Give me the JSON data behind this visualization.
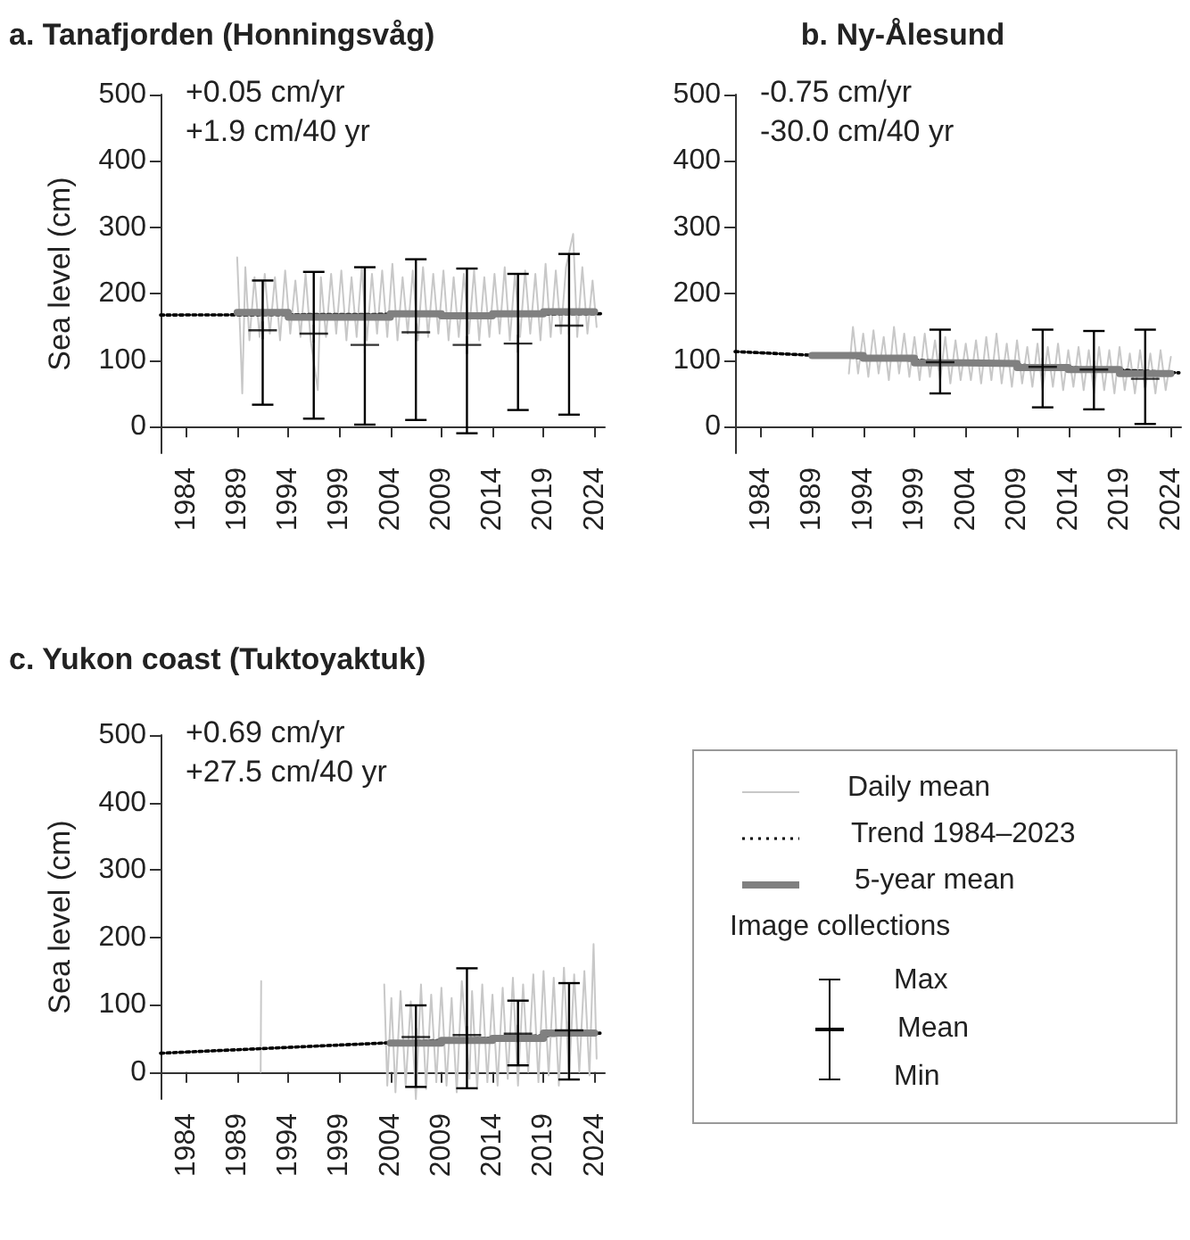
{
  "chart_data": [
    {
      "type": "line",
      "title": "a. Tanafjorden (Honningsvåg)",
      "ylabel": "Sea level (cm)",
      "annotations": [
        "+0.05 cm/yr",
        "+1.9 cm/40 yr"
      ],
      "xlim": [
        1981.5,
        2025
      ],
      "ylim": [
        -40,
        500
      ],
      "xticks": [
        1984,
        1989,
        1994,
        1999,
        2004,
        2009,
        2014,
        2019,
        2024
      ],
      "yticks": [
        0,
        100,
        200,
        300,
        400,
        500
      ],
      "grid": false,
      "marker": "none",
      "series": [
        {
          "type": "line",
          "color": "#c8c8c8",
          "x": [
            1989.0,
            1989.3,
            1989.5,
            1989.8,
            1990.2,
            1990.7,
            1991.2,
            1991.7,
            1992.2,
            1992.7,
            1993.2,
            1993.7,
            1994.2,
            1994.7,
            1995.2,
            1995.7,
            1996.2,
            1996.9,
            1997.2,
            1997.7,
            1998.2,
            1998.7,
            1999.2,
            1999.7,
            2000.2,
            2000.7,
            2001.2,
            2001.7,
            2002.2,
            2002.7,
            2003.2,
            2003.7,
            2004.2,
            2004.7,
            2005.2,
            2005.7,
            2006.2,
            2006.7,
            2007.2,
            2007.7,
            2008.2,
            2008.7,
            2009.2,
            2009.7,
            2010.2,
            2010.7,
            2011.2,
            2011.7,
            2012.2,
            2012.7,
            2013.2,
            2013.7,
            2014.2,
            2014.7,
            2015.2,
            2015.7,
            2016.2,
            2016.7,
            2017.2,
            2017.7,
            2018.2,
            2018.7,
            2019.2,
            2019.7,
            2020.2,
            2020.7,
            2021.2,
            2021.9,
            2022.3,
            2022.8,
            2023.3,
            2023.8,
            2024.2
          ],
          "values": [
            255,
            140,
            50,
            240,
            130,
            225,
            135,
            230,
            140,
            225,
            130,
            235,
            140,
            220,
            135,
            230,
            130,
            55,
            225,
            135,
            230,
            140,
            235,
            130,
            225,
            135,
            240,
            130,
            230,
            140,
            235,
            135,
            245,
            130,
            225,
            140,
            235,
            130,
            240,
            135,
            230,
            140,
            235,
            130,
            225,
            135,
            230,
            140,
            235,
            130,
            225,
            135,
            230,
            140,
            240,
            130,
            230,
            135,
            235,
            140,
            230,
            130,
            245,
            135,
            235,
            140,
            240,
            290,
            135,
            240,
            140,
            220,
            150
          ]
        },
        {
          "type": "line",
          "line_style": "dotted",
          "color": "#000000",
          "x": [
            1981.5,
            2024.8
          ],
          "values": [
            168,
            170
          ]
        },
        {
          "type": "step",
          "color": "#808080",
          "x": [
            1989,
            1994,
            1999,
            2004,
            2009,
            2014,
            2019,
            2024
          ],
          "values": [
            172,
            165,
            165,
            170,
            167,
            170,
            173,
            173
          ]
        },
        {
          "type": "scatter",
          "marker": "cross",
          "color": "#000000",
          "x": [
            1991.5,
            1996.5,
            2001.5,
            2006.5,
            2011.5,
            2016.5,
            2021.5
          ],
          "values": [
            145,
            140,
            123,
            142,
            123,
            125,
            152
          ],
          "errors": [
            [
              33,
              220
            ],
            [
              12,
              233
            ],
            [
              3,
              240
            ],
            [
              10,
              252
            ],
            [
              -10,
              238
            ],
            [
              25,
              230
            ],
            [
              18,
              260
            ]
          ]
        }
      ]
    },
    {
      "type": "line",
      "title": "b. Ny-Ålesund",
      "annotations": [
        "-0.75 cm/yr",
        "-30.0 cm/40 yr"
      ],
      "xlim": [
        1981.5,
        2025
      ],
      "ylim": [
        -40,
        500
      ],
      "xticks": [
        1984,
        1989,
        1994,
        1999,
        2004,
        2009,
        2014,
        2019,
        2024
      ],
      "yticks": [
        0,
        100,
        200,
        300,
        400,
        500
      ],
      "grid": false,
      "marker": "none",
      "series": [
        {
          "type": "line",
          "color": "#c8c8c8",
          "x": [
            1992.6,
            1993.0,
            1993.5,
            1994.0,
            1994.5,
            1995.0,
            1995.5,
            1996.0,
            1996.5,
            1997.0,
            1997.5,
            1998.0,
            1998.5,
            1999.0,
            1999.5,
            2000.0,
            2000.5,
            2001.0,
            2001.5,
            2002.0,
            2002.5,
            2003.0,
            2003.5,
            2004.0,
            2004.5,
            2005.0,
            2005.5,
            2006.0,
            2006.5,
            2007.0,
            2007.5,
            2008.0,
            2008.5,
            2009.0,
            2009.5,
            2010.0,
            2010.5,
            2011.0,
            2011.5,
            2012.0,
            2012.5,
            2013.0,
            2013.5,
            2014.0,
            2014.5,
            2015.0,
            2015.5,
            2016.0,
            2016.5,
            2017.0,
            2017.5,
            2018.0,
            2018.5,
            2019.0,
            2019.5,
            2020.0,
            2020.5,
            2021.0,
            2021.5,
            2022.0,
            2022.5,
            2023.0,
            2023.5,
            2024.0
          ],
          "values": [
            80,
            150,
            80,
            140,
            75,
            145,
            80,
            135,
            70,
            150,
            80,
            140,
            75,
            135,
            70,
            140,
            75,
            130,
            70,
            135,
            65,
            130,
            70,
            125,
            70,
            130,
            65,
            135,
            70,
            140,
            65,
            125,
            60,
            130,
            65,
            120,
            60,
            125,
            55,
            120,
            60,
            125,
            55,
            115,
            60,
            120,
            55,
            115,
            50,
            120,
            55,
            115,
            50,
            120,
            55,
            110,
            50,
            115,
            55,
            110,
            50,
            115,
            55,
            105
          ]
        },
        {
          "type": "line",
          "line_style": "dotted",
          "color": "#000000",
          "x": [
            1981.5,
            2024.8
          ],
          "values": [
            113,
            81
          ]
        },
        {
          "type": "step",
          "color": "#808080",
          "x": [
            1989,
            1994,
            1999,
            2004,
            2009,
            2014,
            2019,
            2024
          ],
          "values": [
            107,
            103,
            96,
            95,
            89,
            86,
            80,
            80
          ]
        },
        {
          "type": "scatter",
          "marker": "cross",
          "color": "#000000",
          "x": [
            2001.5,
            2011.5,
            2016.5,
            2021.5
          ],
          "values": [
            97,
            90,
            86,
            72
          ],
          "errors": [
            [
              50,
              146
            ],
            [
              29,
              146
            ],
            [
              26,
              144
            ],
            [
              4,
              146
            ]
          ]
        }
      ]
    },
    {
      "type": "line",
      "title": "c. Yukon coast (Tuktoyaktuk)",
      "ylabel": "Sea level (cm)",
      "annotations": [
        "+0.69 cm/yr",
        "+27.5 cm/40 yr"
      ],
      "xlim": [
        1981.5,
        2025
      ],
      "ylim": [
        -40,
        500
      ],
      "xticks": [
        1984,
        1989,
        1994,
        1999,
        2004,
        2009,
        2014,
        2019,
        2024
      ],
      "yticks": [
        0,
        100,
        200,
        300,
        400,
        500
      ],
      "grid": false,
      "marker": "none",
      "series": [
        {
          "type": "line",
          "color": "#c8c8c8",
          "x": [
            1991.3,
            1991.35,
            1997,
            2003.4,
            2003.7,
            2004.1,
            2004.5,
            2005.0,
            2005.5,
            2006.0,
            2006.5,
            2007.0,
            2007.5,
            2008.0,
            2008.5,
            2009.0,
            2009.5,
            2010.0,
            2010.5,
            2011.0,
            2011.75,
            2012.0,
            2012.5,
            2013.0,
            2013.5,
            2014.0,
            2014.5,
            2015.0,
            2015.5,
            2016.0,
            2016.5,
            2017.0,
            2017.5,
            2018.0,
            2018.5,
            2019.0,
            2019.5,
            2020.0,
            2020.5,
            2021.0,
            2021.5,
            2022.0,
            2022.5,
            2023.0,
            2023.5,
            2023.9,
            2024.2
          ],
          "values": [
            0,
            135,
            null,
            130,
            -20,
            110,
            -30,
            120,
            -20,
            105,
            -40,
            130,
            -25,
            115,
            -15,
            125,
            -20,
            110,
            -30,
            135,
            -10,
            120,
            -25,
            130,
            -15,
            115,
            -20,
            125,
            -10,
            140,
            -20,
            130,
            0,
            145,
            -15,
            150,
            -5,
            140,
            -20,
            155,
            -10,
            145,
            0,
            150,
            -5,
            190,
            20
          ]
        },
        {
          "type": "line",
          "line_style": "dotted",
          "color": "#000000",
          "x": [
            1981.5,
            2024.8
          ],
          "values": [
            28,
            58
          ]
        },
        {
          "type": "step",
          "color": "#808080",
          "x": [
            2004,
            2009,
            2014,
            2019,
            2024
          ],
          "values": [
            43,
            47,
            50,
            58,
            58
          ]
        },
        {
          "type": "scatter",
          "marker": "cross",
          "color": "#000000",
          "x": [
            2006.5,
            2011.5,
            2016.5,
            2021.5
          ],
          "values": [
            52,
            55,
            57,
            62
          ],
          "errors": [
            [
              -22,
              99
            ],
            [
              -24,
              154
            ],
            [
              10,
              106
            ],
            [
              -11,
              132
            ]
          ]
        }
      ]
    },
    {
      "type": "other",
      "annotations": [
        "Daily mean",
        "Trend 1984–2023",
        "5-year mean",
        "Image collections",
        "Max",
        "Mean",
        "Min"
      ]
    }
  ]
}
